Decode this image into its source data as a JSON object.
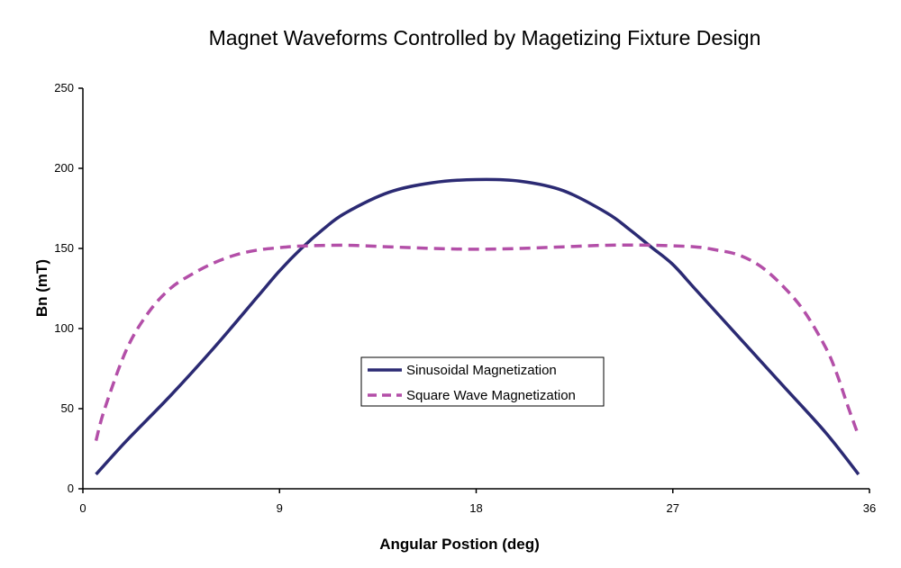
{
  "chart_data": {
    "type": "line",
    "title": "Magnet Waveforms Controlled by Magetizing Fixture Design",
    "xlabel": "Angular Postion (deg)",
    "ylabel": "Bn (mT)",
    "xlim": [
      0,
      36
    ],
    "ylim": [
      0,
      250
    ],
    "xticks": [
      0,
      9,
      18,
      27,
      36
    ],
    "yticks": [
      0,
      50,
      100,
      150,
      200,
      250
    ],
    "xtick_labels": [
      "0",
      "9",
      "18",
      "27",
      "36"
    ],
    "ytick_labels": [
      "0",
      "50",
      "100",
      "150",
      "200",
      "250"
    ],
    "grid": false,
    "legend_position": "center",
    "series": [
      {
        "name": "Sinusoidal Magnetization",
        "color": "#2b2a73",
        "style": "solid",
        "x": [
          0.6,
          2,
          4,
          6,
          8,
          9,
          10,
          11,
          12,
          14,
          16,
          18,
          20,
          22,
          24,
          25,
          26,
          27,
          28,
          30,
          32,
          34,
          35.5
        ],
        "y": [
          9,
          30,
          58,
          88,
          120,
          136,
          150,
          162,
          172,
          185,
          191,
          193,
          192,
          186,
          172,
          162,
          151,
          140,
          125,
          95,
          65,
          35,
          9
        ]
      },
      {
        "name": "Square Wave Magnetization",
        "color": "#b34fa8",
        "style": "dashed",
        "x": [
          0.6,
          1,
          2,
          3,
          4,
          5,
          6,
          7,
          8,
          9,
          10,
          12,
          14,
          16,
          18,
          20,
          22,
          24,
          26,
          28,
          29,
          30,
          31,
          32,
          33,
          34,
          34.5,
          35,
          35.5
        ],
        "y": [
          30,
          50,
          87,
          110,
          125,
          134,
          141,
          146,
          149,
          150.5,
          151.5,
          152,
          151,
          150,
          149.5,
          150,
          151,
          152,
          152,
          151,
          149,
          146,
          139,
          127,
          111,
          88,
          72,
          52,
          33
        ]
      }
    ]
  }
}
